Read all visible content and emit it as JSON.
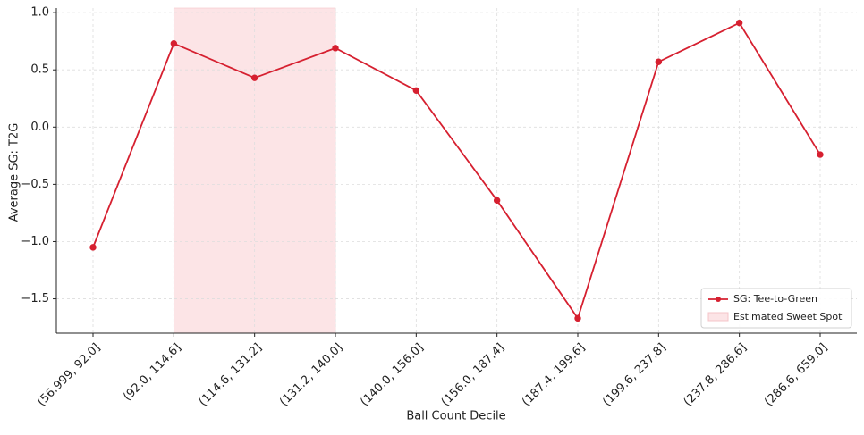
{
  "chart_data": {
    "type": "line",
    "x_label": "Ball Count Decile",
    "y_label": "Average SG: T2G",
    "categories": [
      "(56.999, 92.0]",
      "(92.0, 114.6]",
      "(114.6, 131.2]",
      "(131.2, 140.0]",
      "(140.0, 156.0]",
      "(156.0, 187.4]",
      "(187.4, 199.6]",
      "(199.6, 237.8]",
      "(237.8, 286.6]",
      "(286.6, 659.0]"
    ],
    "series": [
      {
        "name": "SG: Tee-to-Green",
        "color": "#d62030",
        "values": [
          -1.05,
          0.73,
          0.43,
          0.69,
          0.32,
          -0.64,
          -1.67,
          0.57,
          0.91,
          -0.24
        ]
      }
    ],
    "shaded_span": {
      "name": "Estimated Sweet Spot",
      "color": "#fce4e6",
      "x": [
        1,
        3
      ]
    },
    "ylim": [
      -1.8,
      1.04
    ],
    "yticks": [
      {
        "value": -1.5,
        "label": "−1.5"
      },
      {
        "value": -1.0,
        "label": "−1.0"
      },
      {
        "value": -0.5,
        "label": "−0.5"
      },
      {
        "value": 0.0,
        "label": "0.0"
      },
      {
        "value": 0.5,
        "label": "0.5"
      },
      {
        "value": 1.0,
        "label": "1.0"
      }
    ],
    "grid": true,
    "legend": "lower right"
  }
}
